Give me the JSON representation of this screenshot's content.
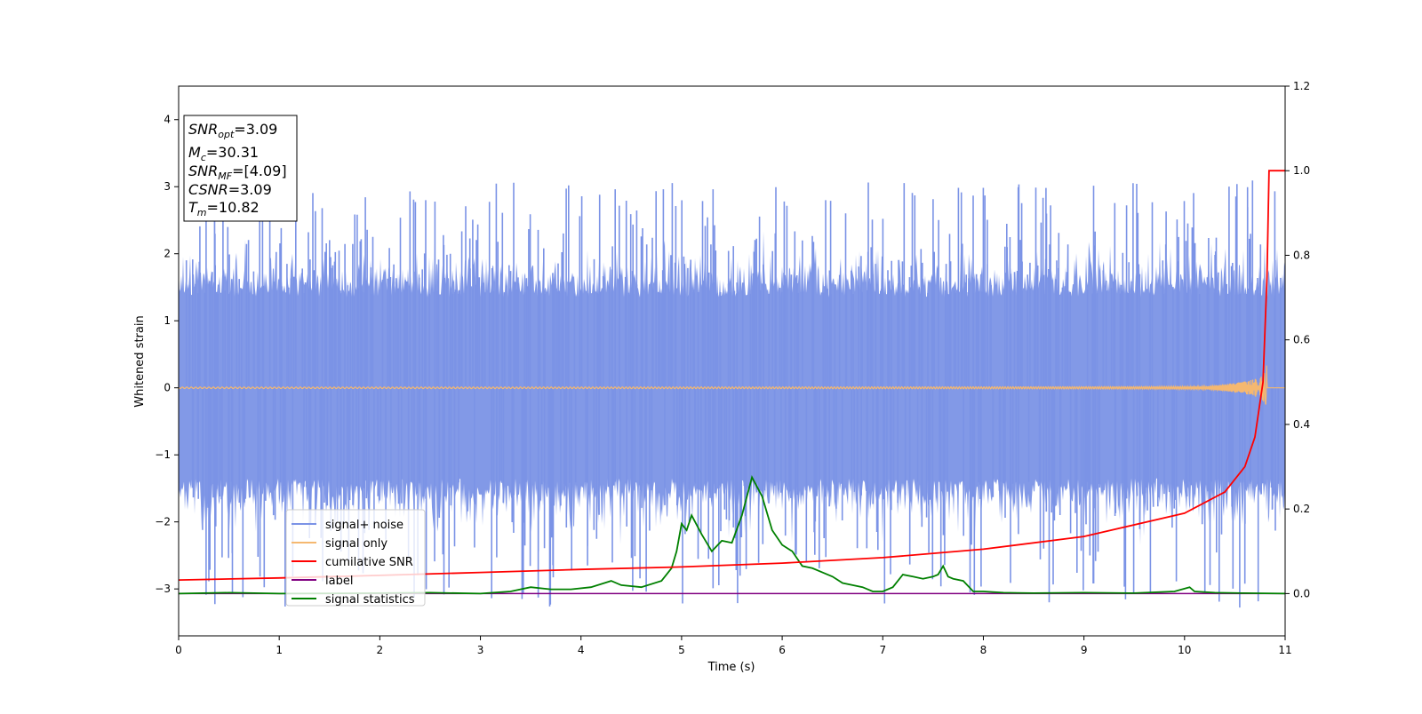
{
  "chart_data": {
    "type": "line",
    "title": "",
    "xlabel": "Time (s)",
    "ylabel": "Whitened strain",
    "xlim": [
      0,
      11
    ],
    "ylim_left": [
      -3.7,
      4.5
    ],
    "ylim_right": [
      -0.1,
      1.2
    ],
    "x_ticks": [
      "0",
      "1",
      "2",
      "3",
      "4",
      "5",
      "6",
      "7",
      "8",
      "9",
      "10",
      "11"
    ],
    "y_ticks_left": [
      "−3",
      "−2",
      "−1",
      "0",
      "1",
      "2",
      "3",
      "4"
    ],
    "y_ticks_right": [
      "0.0",
      "0.2",
      "0.4",
      "0.6",
      "0.8",
      "1.0",
      "1.2"
    ],
    "grid": false,
    "legend_placement": "lower-left",
    "info_box": {
      "snr_opt": {
        "base": "SNR",
        "sub": "opt",
        "value": "=3.09"
      },
      "mc": {
        "base": "M",
        "sub": "c",
        "value": "=30.31"
      },
      "snr_mf": {
        "base": "SNR",
        "sub": "MF",
        "value": "=[4.09]"
      },
      "csnr": {
        "base": "CSNR",
        "sub": "",
        "value": "=3.09"
      },
      "tm": {
        "base": "T",
        "sub": "m",
        "value": "=10.82"
      }
    },
    "series": [
      {
        "name": "signal+ noise",
        "axis": "left",
        "color": "#7b93e6",
        "description_visible": "dense noise roughly between -2.5 and 3.1 across 0 to 11 s",
        "approx_range": [
          -3.3,
          3.1
        ]
      },
      {
        "name": "signal only",
        "axis": "left",
        "color": "#f5b870",
        "chirp": {
          "start_time": 0,
          "merger_time": 10.82,
          "peak_amplitude": 0.6
        }
      },
      {
        "name": "cumilative SNR",
        "axis": "right",
        "color": "#ff0000",
        "x": [
          0,
          1,
          2,
          3,
          4,
          5,
          6,
          7,
          8,
          9,
          10,
          10.4,
          10.6,
          10.7,
          10.78,
          10.82,
          10.84,
          11
        ],
        "values": [
          0.032,
          0.037,
          0.043,
          0.05,
          0.057,
          0.063,
          0.072,
          0.085,
          0.105,
          0.135,
          0.19,
          0.24,
          0.3,
          0.37,
          0.5,
          0.75,
          1.0,
          1.0
        ]
      },
      {
        "name": "label",
        "axis": "right",
        "color": "#800080",
        "x": [
          0,
          11
        ],
        "values": [
          0.0,
          0.0
        ]
      },
      {
        "name": "signal statistics",
        "axis": "right",
        "color": "#008000",
        "x": [
          0,
          0.5,
          1,
          2,
          2.5,
          3,
          3.3,
          3.5,
          3.7,
          3.9,
          4.1,
          4.3,
          4.4,
          4.6,
          4.8,
          4.9,
          4.95,
          5.0,
          5.05,
          5.1,
          5.2,
          5.3,
          5.4,
          5.5,
          5.6,
          5.7,
          5.8,
          5.9,
          6.0,
          6.1,
          6.2,
          6.3,
          6.4,
          6.5,
          6.6,
          6.7,
          6.8,
          6.9,
          7.0,
          7.1,
          7.2,
          7.3,
          7.4,
          7.5,
          7.55,
          7.6,
          7.65,
          7.7,
          7.8,
          7.9,
          8.0,
          8.2,
          8.5,
          9.0,
          9.5,
          9.9,
          10.05,
          10.1,
          10.3,
          10.6,
          11
        ],
        "values": [
          0.0,
          0.002,
          0.0,
          0.001,
          0.002,
          0.0,
          0.005,
          0.015,
          0.01,
          0.01,
          0.015,
          0.03,
          0.02,
          0.015,
          0.03,
          0.06,
          0.1,
          0.165,
          0.15,
          0.185,
          0.14,
          0.1,
          0.125,
          0.12,
          0.185,
          0.275,
          0.23,
          0.15,
          0.115,
          0.1,
          0.065,
          0.06,
          0.05,
          0.04,
          0.025,
          0.02,
          0.015,
          0.005,
          0.005,
          0.015,
          0.045,
          0.04,
          0.035,
          0.04,
          0.045,
          0.065,
          0.04,
          0.035,
          0.03,
          0.005,
          0.005,
          0.002,
          0.001,
          0.002,
          0.001,
          0.005,
          0.015,
          0.005,
          0.002,
          0.001,
          0.0
        ]
      }
    ]
  }
}
